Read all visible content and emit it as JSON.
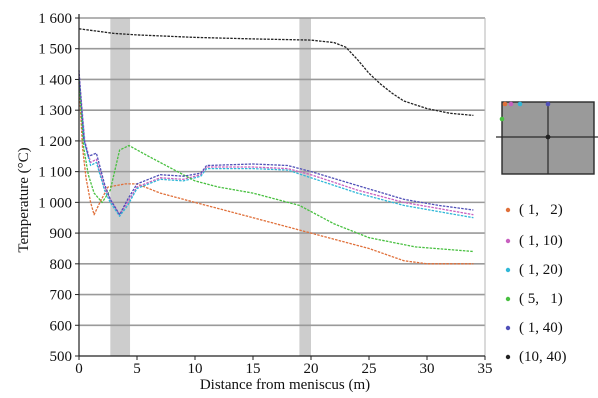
{
  "chart_data": {
    "type": "line",
    "xlabel": "Distance from meniscus (m)",
    "ylabel": "Temperature (°C)",
    "xlim": [
      0,
      35
    ],
    "ylim": [
      500,
      1600
    ],
    "x_ticks": [
      "0",
      "5",
      "10",
      "15",
      "20",
      "25",
      "30",
      "35"
    ],
    "y_ticks": [
      "500",
      "600",
      "700",
      "800",
      "900",
      "1 000",
      "1 100",
      "1 200",
      "1 300",
      "1 400",
      "1 500",
      "1 600"
    ],
    "grid": "horizontal",
    "legend_position": "right",
    "shaded_bands": [
      [
        2.7,
        4.4
      ],
      [
        19.0,
        20.0
      ]
    ],
    "series": [
      {
        "name": "( 1,   2)",
        "color": "#e0703a",
        "points": [
          [
            0,
            1390
          ],
          [
            0.3,
            1180
          ],
          [
            0.6,
            1080
          ],
          [
            1.0,
            1000
          ],
          [
            1.3,
            960
          ],
          [
            1.8,
            1000
          ],
          [
            2.5,
            1050
          ],
          [
            4,
            1060
          ],
          [
            5,
            1060
          ],
          [
            7,
            1030
          ],
          [
            10,
            1000
          ],
          [
            15,
            950
          ],
          [
            20,
            900
          ],
          [
            25,
            850
          ],
          [
            28,
            810
          ],
          [
            30,
            800
          ],
          [
            34,
            800
          ]
        ]
      },
      {
        "name": "( 1, 10)",
        "color": "#c860c0",
        "points": [
          [
            0,
            1420
          ],
          [
            0.5,
            1200
          ],
          [
            1.0,
            1130
          ],
          [
            1.5,
            1140
          ],
          [
            2.2,
            1050
          ],
          [
            2.7,
            1010
          ],
          [
            3.5,
            960
          ],
          [
            4.2,
            1000
          ],
          [
            5,
            1050
          ],
          [
            7,
            1080
          ],
          [
            9,
            1075
          ],
          [
            10.5,
            1090
          ],
          [
            11,
            1115
          ],
          [
            15,
            1115
          ],
          [
            18,
            1110
          ],
          [
            20,
            1090
          ],
          [
            24,
            1040
          ],
          [
            28,
            1000
          ],
          [
            31,
            980
          ],
          [
            34,
            960
          ]
        ]
      },
      {
        "name": "( 1, 20)",
        "color": "#30b8d8",
        "points": [
          [
            0,
            1400
          ],
          [
            0.5,
            1190
          ],
          [
            1.0,
            1120
          ],
          [
            1.5,
            1130
          ],
          [
            2.2,
            1040
          ],
          [
            2.7,
            1000
          ],
          [
            3.5,
            955
          ],
          [
            4.2,
            990
          ],
          [
            5,
            1045
          ],
          [
            7,
            1075
          ],
          [
            9,
            1070
          ],
          [
            10.5,
            1085
          ],
          [
            11,
            1110
          ],
          [
            15,
            1110
          ],
          [
            18,
            1105
          ],
          [
            20,
            1080
          ],
          [
            24,
            1030
          ],
          [
            28,
            990
          ],
          [
            31,
            970
          ],
          [
            34,
            950
          ]
        ]
      },
      {
        "name": "( 5,   1)",
        "color": "#48c040",
        "points": [
          [
            0,
            1400
          ],
          [
            0.4,
            1180
          ],
          [
            0.8,
            1090
          ],
          [
            1.3,
            1030
          ],
          [
            2.0,
            1000
          ],
          [
            2.7,
            1040
          ],
          [
            3.5,
            1170
          ],
          [
            4.3,
            1185
          ],
          [
            6,
            1150
          ],
          [
            8,
            1110
          ],
          [
            10,
            1070
          ],
          [
            12,
            1050
          ],
          [
            15,
            1030
          ],
          [
            19,
            990
          ],
          [
            22,
            930
          ],
          [
            25,
            885
          ],
          [
            29,
            855
          ],
          [
            34,
            840
          ]
        ]
      },
      {
        "name": "( 1, 40)",
        "color": "#5050b8",
        "points": [
          [
            0,
            1430
          ],
          [
            0.4,
            1210
          ],
          [
            0.8,
            1150
          ],
          [
            1.5,
            1160
          ],
          [
            2.2,
            1060
          ],
          [
            2.7,
            1010
          ],
          [
            3.5,
            960
          ],
          [
            4.2,
            1010
          ],
          [
            5,
            1060
          ],
          [
            7,
            1090
          ],
          [
            9,
            1085
          ],
          [
            10.5,
            1095
          ],
          [
            11,
            1120
          ],
          [
            15,
            1125
          ],
          [
            18,
            1120
          ],
          [
            20,
            1100
          ],
          [
            24,
            1055
          ],
          [
            28,
            1010
          ],
          [
            31,
            990
          ],
          [
            34,
            975
          ]
        ]
      },
      {
        "name": "(10, 40)",
        "color": "#222222",
        "points": [
          [
            0,
            1565
          ],
          [
            1,
            1560
          ],
          [
            3,
            1550
          ],
          [
            5,
            1545
          ],
          [
            10,
            1537
          ],
          [
            15,
            1532
          ],
          [
            20,
            1528
          ],
          [
            22,
            1520
          ],
          [
            23,
            1505
          ],
          [
            24,
            1465
          ],
          [
            25,
            1420
          ],
          [
            26,
            1385
          ],
          [
            27,
            1355
          ],
          [
            28,
            1330
          ],
          [
            30,
            1305
          ],
          [
            32,
            1290
          ],
          [
            34,
            1283
          ]
        ]
      }
    ]
  }
}
